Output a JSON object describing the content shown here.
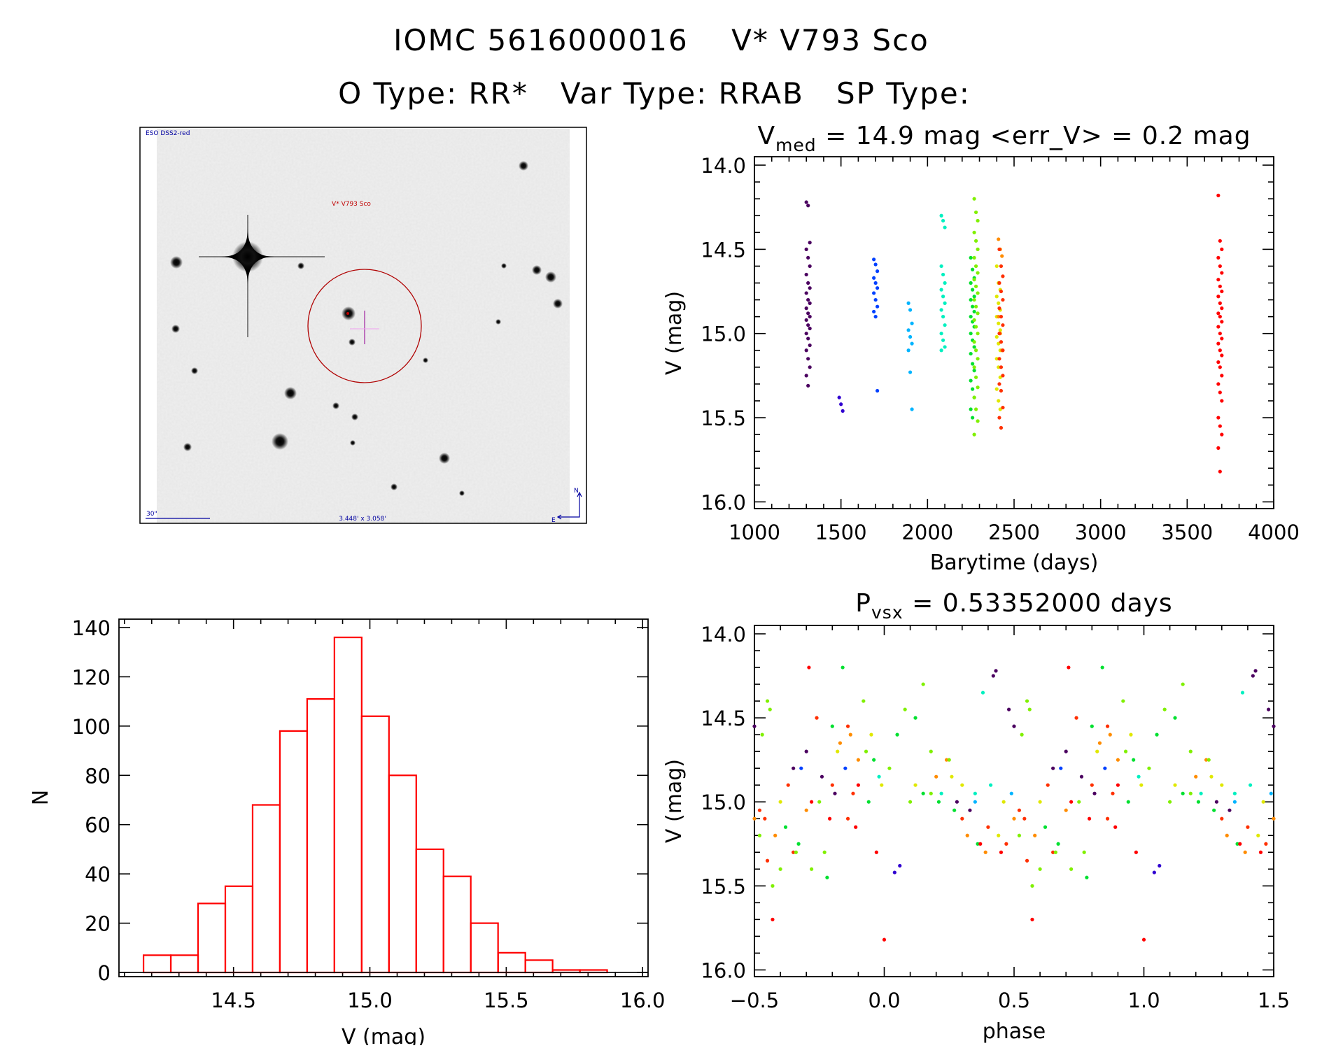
{
  "header": {
    "title": "IOMC 5616000016    V* V793 Sco",
    "subtitle": "O Type: RR*   Var Type: RRAB   SP Type:"
  },
  "finder_image": {
    "survey_label": "ESO DSS2-red",
    "target_label": "V* V793 Sco",
    "scale_label": "30\"",
    "fov_label": "3.448' x 3.058'",
    "north_label": "N",
    "east_label": "E"
  },
  "colors": {
    "p": "#4b0060",
    "i": "#3000d0",
    "b": "#0040ff",
    "c": "#00b4ff",
    "t": "#00f0c0",
    "g": "#00e030",
    "l": "#80f000",
    "y": "#e0e800",
    "o": "#ff8c00",
    "r": "#ff3000",
    "R": "#ff0000",
    "hist": "#ff0000",
    "circle": "#b00000",
    "crosshair": "#e040e0",
    "label_blue": "#0000a0"
  },
  "chart_data": [
    {
      "id": "lightcurve",
      "type": "scatter",
      "title_main": "V",
      "title_sub": "med",
      "title_rest": " = 14.9 mag <err_V> = 0.2 mag",
      "xlabel": "Barytime (days)",
      "ylabel": "V (mag)",
      "xlim": [
        1000,
        4000
      ],
      "ylim": [
        16.04,
        13.95
      ],
      "y_inverted": true,
      "xticks": [
        [
          1000,
          "1000"
        ],
        [
          1500,
          "1500"
        ],
        [
          2000,
          "2000"
        ],
        [
          2500,
          "2500"
        ],
        [
          3000,
          "3000"
        ],
        [
          3500,
          "3500"
        ],
        [
          4000,
          "4000"
        ]
      ],
      "yticks": [
        [
          14.0,
          "14.0"
        ],
        [
          14.5,
          "14.5"
        ],
        [
          15.0,
          "15.0"
        ],
        [
          15.5,
          "15.5"
        ],
        [
          16.0,
          "16.0"
        ]
      ],
      "xminor": 100,
      "yminor": 0.1,
      "groups": [
        {
          "t": 1310,
          "color": "p",
          "mags": [
            14.22,
            14.24,
            14.46,
            14.5,
            14.55,
            14.6,
            14.65,
            14.7,
            14.73,
            14.76,
            14.8,
            14.82,
            14.85,
            14.88,
            14.9,
            14.92,
            14.95,
            14.97,
            15.0,
            15.03,
            15.07,
            15.1,
            15.15,
            15.2,
            15.25,
            15.31
          ]
        },
        {
          "t": 1500,
          "color": "i",
          "mags": [
            15.38,
            15.42,
            15.46
          ]
        },
        {
          "t": 1700,
          "color": "b",
          "mags": [
            14.56,
            14.59,
            14.63,
            14.67,
            14.7,
            14.73,
            14.76,
            14.8,
            14.84,
            14.87,
            14.9,
            15.34
          ]
        },
        {
          "t": 1900,
          "color": "c",
          "mags": [
            14.82,
            14.86,
            14.94,
            14.98,
            15.02,
            15.06,
            15.1,
            15.23,
            15.45
          ]
        },
        {
          "t": 2090,
          "color": "t",
          "mags": [
            14.3,
            14.33,
            14.37,
            14.6,
            14.65,
            14.7,
            14.74,
            14.78,
            14.82,
            14.86,
            14.9,
            14.95,
            15.0,
            15.04,
            15.08,
            15.1
          ]
        },
        {
          "t": 2260,
          "color": "g",
          "mags": [
            14.55,
            14.62,
            14.67,
            14.7,
            14.74,
            14.78,
            14.8,
            14.84,
            14.87,
            14.9,
            14.93,
            14.96,
            15.0,
            15.04,
            15.08,
            15.12,
            15.18,
            15.22,
            15.28,
            15.33,
            15.38,
            15.45,
            15.5
          ]
        },
        {
          "t": 2280,
          "color": "l",
          "mags": [
            14.2,
            14.28,
            14.33,
            14.4,
            14.45,
            14.5,
            14.55,
            14.6,
            14.64,
            14.68,
            14.72,
            14.76,
            14.8,
            14.84,
            14.88,
            14.92,
            14.96,
            15.0,
            15.05,
            15.1,
            15.15,
            15.2,
            15.26,
            15.32,
            15.38,
            15.45,
            15.52,
            15.6
          ]
        },
        {
          "t": 2410,
          "color": "y",
          "mags": [
            14.6,
            14.7,
            14.74,
            14.78,
            14.82,
            14.86,
            14.9,
            14.94,
            14.98,
            15.02,
            15.06,
            15.1,
            15.15,
            15.2,
            15.26,
            15.33,
            15.4,
            15.45
          ]
        },
        {
          "t": 2420,
          "color": "o",
          "mags": [
            14.44,
            14.5,
            14.54,
            14.9,
            15.0,
            15.1
          ]
        },
        {
          "t": 2425,
          "color": "r",
          "mags": [
            14.5,
            14.6,
            14.66,
            14.7,
            14.75,
            14.8,
            14.85,
            14.9,
            14.95,
            15.0,
            15.05,
            15.1,
            15.15,
            15.2,
            15.25,
            15.3,
            15.34,
            15.44,
            15.5,
            15.56
          ]
        },
        {
          "t": 3690,
          "color": "R",
          "mags": [
            14.18,
            14.45,
            14.5,
            14.55,
            14.6,
            14.64,
            14.68,
            14.72,
            14.75,
            14.78,
            14.82,
            14.85,
            14.88,
            14.9,
            14.93,
            14.96,
            15.0,
            15.03,
            15.06,
            15.1,
            15.13,
            15.17,
            15.2,
            15.25,
            15.3,
            15.35,
            15.4,
            15.5,
            15.55,
            15.6,
            15.68,
            15.82
          ]
        }
      ]
    },
    {
      "id": "phase",
      "type": "scatter",
      "title_main": "P",
      "title_sub": "vsx",
      "title_rest": " = 0.53352000 days",
      "xlabel": "phase",
      "ylabel": "V (mag)",
      "xlim": [
        -0.5,
        1.5
      ],
      "ylim": [
        16.04,
        13.95
      ],
      "y_inverted": true,
      "xticks": [
        [
          -0.5,
          "−0.5"
        ],
        [
          0.0,
          "0.0"
        ],
        [
          0.5,
          "0.5"
        ],
        [
          1.0,
          "1.0"
        ],
        [
          1.5,
          "1.5"
        ]
      ],
      "yticks": [
        [
          14.0,
          "14.0"
        ],
        [
          14.5,
          "14.5"
        ],
        [
          15.0,
          "15.0"
        ],
        [
          15.5,
          "15.5"
        ],
        [
          16.0,
          "16.0"
        ]
      ],
      "xminor": 0.1,
      "yminor": 0.1,
      "points": [
        [
          0.0,
          15.82,
          "R"
        ],
        [
          0.02,
          14.8,
          "l"
        ],
        [
          0.04,
          15.42,
          "i"
        ],
        [
          0.05,
          14.6,
          "g"
        ],
        [
          0.06,
          15.38,
          "i"
        ],
        [
          0.08,
          14.45,
          "l"
        ],
        [
          0.1,
          15.0,
          "l"
        ],
        [
          0.12,
          14.9,
          "y"
        ],
        [
          0.12,
          14.5,
          "g"
        ],
        [
          0.15,
          14.95,
          "g"
        ],
        [
          0.15,
          14.3,
          "l"
        ],
        [
          0.18,
          14.7,
          "l"
        ],
        [
          0.18,
          14.95,
          "l"
        ],
        [
          0.2,
          14.85,
          "o"
        ],
        [
          0.21,
          15.0,
          "g"
        ],
        [
          0.22,
          14.95,
          "t"
        ],
        [
          0.24,
          14.75,
          "o"
        ],
        [
          0.25,
          14.75,
          "l"
        ],
        [
          0.26,
          14.85,
          "y"
        ],
        [
          0.27,
          15.05,
          "g"
        ],
        [
          0.28,
          15.0,
          "p"
        ],
        [
          0.3,
          15.1,
          "r"
        ],
        [
          0.3,
          14.9,
          "y"
        ],
        [
          0.32,
          15.2,
          "o"
        ],
        [
          0.33,
          15.05,
          "p"
        ],
        [
          0.35,
          15.0,
          "c"
        ],
        [
          0.35,
          14.95,
          "t"
        ],
        [
          0.36,
          15.25,
          "g"
        ],
        [
          0.37,
          15.25,
          "R"
        ],
        [
          0.38,
          14.35,
          "t"
        ],
        [
          0.39,
          15.3,
          "o"
        ],
        [
          0.4,
          15.15,
          "r"
        ],
        [
          0.41,
          14.9,
          "t"
        ],
        [
          0.42,
          14.25,
          "p"
        ],
        [
          0.43,
          14.22,
          "p"
        ],
        [
          0.44,
          15.2,
          "y"
        ],
        [
          0.45,
          15.3,
          "R"
        ],
        [
          0.46,
          15.0,
          "y"
        ],
        [
          0.47,
          15.25,
          "r"
        ],
        [
          0.48,
          14.45,
          "p"
        ],
        [
          0.49,
          14.95,
          "c"
        ],
        [
          0.5,
          14.55,
          "p"
        ],
        [
          0.5,
          15.1,
          "o"
        ],
        [
          0.52,
          15.2,
          "l"
        ],
        [
          0.52,
          15.05,
          "r"
        ],
        [
          0.53,
          14.6,
          "l"
        ],
        [
          0.54,
          15.1,
          "r"
        ],
        [
          0.55,
          15.35,
          "r"
        ],
        [
          0.55,
          14.4,
          "l"
        ],
        [
          0.56,
          14.45,
          "l"
        ],
        [
          0.57,
          15.7,
          "R"
        ],
        [
          0.57,
          15.5,
          "l"
        ],
        [
          0.58,
          15.2,
          "o"
        ],
        [
          0.6,
          15.0,
          "y"
        ],
        [
          0.6,
          15.4,
          "l"
        ],
        [
          0.62,
          15.15,
          "g"
        ],
        [
          0.63,
          14.9,
          "r"
        ],
        [
          0.65,
          15.3,
          "r"
        ],
        [
          0.65,
          14.8,
          "p"
        ],
        [
          0.66,
          15.3,
          "l"
        ],
        [
          0.67,
          15.25,
          "g"
        ],
        [
          0.68,
          14.8,
          "b"
        ],
        [
          0.7,
          15.05,
          "o"
        ],
        [
          0.7,
          14.7,
          "p"
        ],
        [
          0.71,
          14.2,
          "R"
        ],
        [
          0.72,
          15.4,
          "l"
        ],
        [
          0.72,
          15.0,
          "R"
        ],
        [
          0.74,
          14.5,
          "r"
        ],
        [
          0.75,
          15.0,
          "l"
        ],
        [
          0.76,
          14.85,
          "p"
        ],
        [
          0.77,
          15.3,
          "l"
        ],
        [
          0.78,
          15.45,
          "g"
        ],
        [
          0.79,
          15.1,
          "R"
        ],
        [
          0.8,
          14.55,
          "g"
        ],
        [
          0.8,
          14.9,
          "r"
        ],
        [
          0.81,
          14.95,
          "p"
        ],
        [
          0.82,
          14.7,
          "y"
        ],
        [
          0.83,
          14.65,
          "o"
        ],
        [
          0.84,
          14.2,
          "g"
        ],
        [
          0.85,
          14.8,
          "b"
        ],
        [
          0.86,
          15.1,
          "r"
        ],
        [
          0.86,
          14.55,
          "r"
        ],
        [
          0.87,
          14.6,
          "o"
        ],
        [
          0.88,
          14.95,
          "r"
        ],
        [
          0.89,
          15.15,
          "R"
        ],
        [
          0.9,
          14.75,
          "o"
        ],
        [
          0.9,
          14.9,
          "R"
        ],
        [
          0.92,
          14.4,
          "l"
        ],
        [
          0.93,
          14.7,
          "l"
        ],
        [
          0.94,
          15.0,
          "g"
        ],
        [
          0.95,
          14.6,
          "y"
        ],
        [
          0.96,
          14.75,
          "g"
        ],
        [
          0.97,
          15.3,
          "R"
        ],
        [
          0.98,
          14.85,
          "t"
        ],
        [
          0.99,
          14.9,
          "y"
        ]
      ]
    },
    {
      "id": "histogram",
      "type": "bar",
      "xlabel": "V (mag)",
      "ylabel": "N",
      "xlim": [
        14.08,
        16.02
      ],
      "ylim": [
        -1.7,
        143.4
      ],
      "xticks": [
        [
          14.5,
          "14.5"
        ],
        [
          15.0,
          "15.0"
        ],
        [
          15.5,
          "15.5"
        ],
        [
          16.0,
          "16.0"
        ]
      ],
      "yticks": [
        [
          0,
          "0"
        ],
        [
          20,
          "20"
        ],
        [
          40,
          "40"
        ],
        [
          60,
          "60"
        ],
        [
          80,
          "80"
        ],
        [
          100,
          "100"
        ],
        [
          120,
          "120"
        ],
        [
          140,
          "140"
        ]
      ],
      "xminor": 0.1,
      "yminor": 20,
      "bin_start": 14.17,
      "bin_width": 0.1,
      "values": [
        7,
        7,
        28,
        35,
        68,
        98,
        111,
        136,
        104,
        80,
        50,
        39,
        20,
        8,
        5,
        1,
        1
      ]
    }
  ]
}
